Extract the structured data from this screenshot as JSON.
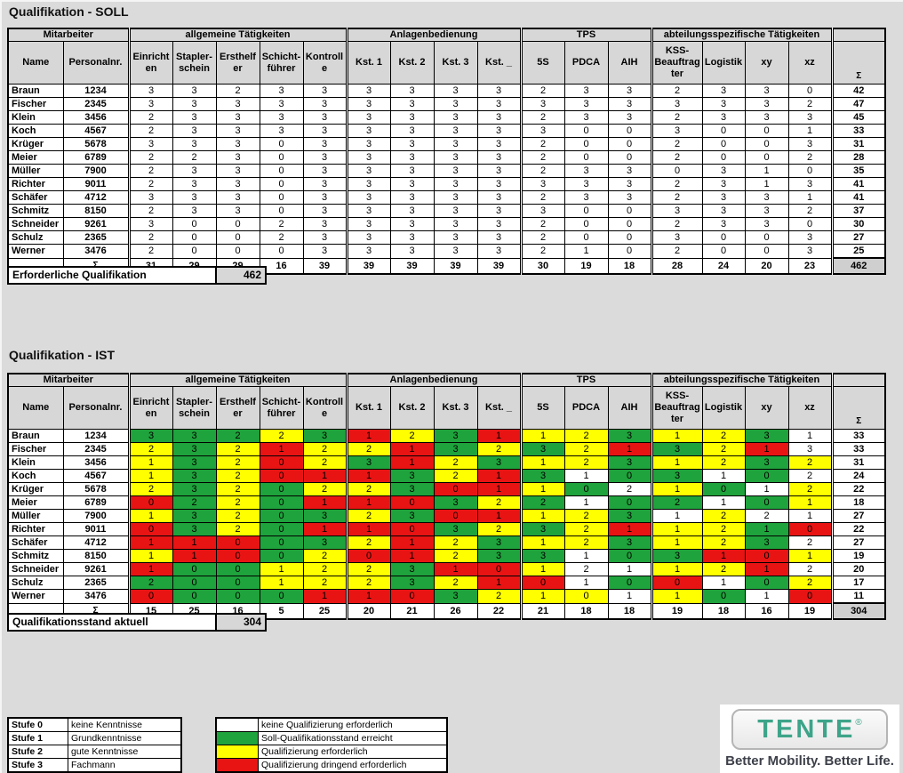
{
  "table_header": {
    "groups": [
      {
        "label": "Mitarbeiter",
        "span": 2
      },
      {
        "label": "allgemeine Tätigkeiten",
        "span": 5
      },
      {
        "label": "Anlagenbedienung",
        "span": 4
      },
      {
        "label": "TPS",
        "span": 3
      },
      {
        "label": "abteilungsspezifische Tätigkeiten",
        "span": 4
      },
      {
        "label": "",
        "span": 1
      }
    ],
    "columns": [
      "Name",
      "Personalnr.",
      "Einricht\nen",
      "Stapler-\nschein",
      "Ersthelf\ner",
      "Schicht-\nführer",
      "Kontroll\ne",
      "Kst. 1",
      "Kst. 2",
      "Kst. 3",
      "Kst. _",
      "5S",
      "PDCA",
      "AIH",
      "KSS-\nBeauftrag\nter",
      "Logistik",
      "xy",
      "xz",
      "Σ"
    ],
    "sum_symbol": "Σ"
  },
  "soll": {
    "title": "Qualifikation - SOLL",
    "summary_label": "Erforderliche Qualifikation",
    "summary_value": "462",
    "rows": [
      {
        "name": "Braun",
        "pnr": "1234",
        "values": [
          3,
          3,
          2,
          3,
          3,
          3,
          3,
          3,
          3,
          2,
          3,
          3,
          2,
          3,
          3,
          0
        ],
        "sum": 42
      },
      {
        "name": "Fischer",
        "pnr": "2345",
        "values": [
          3,
          3,
          3,
          3,
          3,
          3,
          3,
          3,
          3,
          3,
          3,
          3,
          3,
          3,
          3,
          2
        ],
        "sum": 47
      },
      {
        "name": "Klein",
        "pnr": "3456",
        "values": [
          2,
          3,
          3,
          3,
          3,
          3,
          3,
          3,
          3,
          2,
          3,
          3,
          2,
          3,
          3,
          3
        ],
        "sum": 45
      },
      {
        "name": "Koch",
        "pnr": "4567",
        "values": [
          2,
          3,
          3,
          3,
          3,
          3,
          3,
          3,
          3,
          3,
          0,
          0,
          3,
          0,
          0,
          1
        ],
        "sum": 33
      },
      {
        "name": "Krüger",
        "pnr": "5678",
        "values": [
          3,
          3,
          3,
          0,
          3,
          3,
          3,
          3,
          3,
          2,
          0,
          0,
          2,
          0,
          0,
          3
        ],
        "sum": 31
      },
      {
        "name": "Meier",
        "pnr": "6789",
        "values": [
          2,
          2,
          3,
          0,
          3,
          3,
          3,
          3,
          3,
          2,
          0,
          0,
          2,
          0,
          0,
          2
        ],
        "sum": 28
      },
      {
        "name": "Müller",
        "pnr": "7900",
        "values": [
          2,
          3,
          3,
          0,
          3,
          3,
          3,
          3,
          3,
          2,
          3,
          3,
          0,
          3,
          1,
          0
        ],
        "sum": 35
      },
      {
        "name": "Richter",
        "pnr": "9011",
        "values": [
          2,
          3,
          3,
          0,
          3,
          3,
          3,
          3,
          3,
          3,
          3,
          3,
          2,
          3,
          1,
          3
        ],
        "sum": 41
      },
      {
        "name": "Schäfer",
        "pnr": "4712",
        "values": [
          3,
          3,
          3,
          0,
          3,
          3,
          3,
          3,
          3,
          2,
          3,
          3,
          2,
          3,
          3,
          1
        ],
        "sum": 41
      },
      {
        "name": "Schmitz",
        "pnr": "8150",
        "values": [
          2,
          3,
          3,
          0,
          3,
          3,
          3,
          3,
          3,
          3,
          0,
          0,
          3,
          3,
          3,
          2
        ],
        "sum": 37
      },
      {
        "name": "Schneider",
        "pnr": "9261",
        "values": [
          3,
          0,
          0,
          2,
          3,
          3,
          3,
          3,
          3,
          2,
          0,
          0,
          2,
          3,
          3,
          0
        ],
        "sum": 30
      },
      {
        "name": "Schulz",
        "pnr": "2365",
        "values": [
          2,
          0,
          0,
          2,
          3,
          3,
          3,
          3,
          3,
          2,
          0,
          0,
          3,
          0,
          0,
          3
        ],
        "sum": 27
      },
      {
        "name": "Werner",
        "pnr": "3476",
        "values": [
          2,
          0,
          0,
          0,
          3,
          3,
          3,
          3,
          3,
          2,
          1,
          0,
          2,
          0,
          0,
          3
        ],
        "sum": 25
      }
    ],
    "col_sums": [
      31,
      29,
      29,
      16,
      39,
      39,
      39,
      39,
      39,
      30,
      19,
      18,
      28,
      24,
      20,
      23
    ],
    "total": 462
  },
  "ist": {
    "title": "Qualifikation - IST",
    "summary_label": "Qualifikationsstand aktuell",
    "summary_value": "304",
    "rows": [
      {
        "name": "Braun",
        "pnr": "1234",
        "values": [
          3,
          3,
          2,
          2,
          3,
          1,
          2,
          3,
          1,
          1,
          2,
          3,
          1,
          2,
          3,
          1
        ],
        "sum": 33
      },
      {
        "name": "Fischer",
        "pnr": "2345",
        "values": [
          2,
          3,
          2,
          1,
          2,
          2,
          1,
          3,
          2,
          3,
          2,
          1,
          3,
          2,
          1,
          3
        ],
        "sum": 33
      },
      {
        "name": "Klein",
        "pnr": "3456",
        "values": [
          1,
          3,
          2,
          0,
          2,
          3,
          1,
          2,
          3,
          1,
          2,
          3,
          1,
          2,
          3,
          2
        ],
        "sum": 31
      },
      {
        "name": "Koch",
        "pnr": "4567",
        "values": [
          1,
          3,
          2,
          0,
          1,
          1,
          3,
          2,
          1,
          3,
          1,
          0,
          3,
          1,
          0,
          2
        ],
        "sum": 24
      },
      {
        "name": "Krüger",
        "pnr": "5678",
        "values": [
          2,
          3,
          2,
          0,
          2,
          2,
          3,
          0,
          1,
          1,
          0,
          2,
          1,
          0,
          1,
          2
        ],
        "sum": 22
      },
      {
        "name": "Meier",
        "pnr": "6789",
        "values": [
          0,
          2,
          2,
          0,
          1,
          1,
          0,
          3,
          2,
          2,
          1,
          0,
          2,
          1,
          0,
          1
        ],
        "sum": 18
      },
      {
        "name": "Müller",
        "pnr": "7900",
        "values": [
          1,
          3,
          2,
          0,
          3,
          2,
          3,
          0,
          1,
          1,
          2,
          3,
          1,
          2,
          2,
          1
        ],
        "sum": 27
      },
      {
        "name": "Richter",
        "pnr": "9011",
        "values": [
          0,
          3,
          2,
          0,
          1,
          1,
          0,
          3,
          2,
          3,
          2,
          1,
          1,
          2,
          1,
          0
        ],
        "sum": 22
      },
      {
        "name": "Schäfer",
        "pnr": "4712",
        "values": [
          1,
          1,
          0,
          0,
          3,
          2,
          1,
          2,
          3,
          1,
          2,
          3,
          1,
          2,
          3,
          2
        ],
        "sum": 27
      },
      {
        "name": "Schmitz",
        "pnr": "8150",
        "values": [
          1,
          1,
          0,
          0,
          2,
          0,
          1,
          2,
          3,
          3,
          1,
          0,
          3,
          1,
          0,
          1
        ],
        "sum": 19
      },
      {
        "name": "Schneider",
        "pnr": "9261",
        "values": [
          1,
          0,
          0,
          1,
          2,
          2,
          3,
          1,
          0,
          1,
          2,
          1,
          1,
          2,
          1,
          2
        ],
        "sum": 20
      },
      {
        "name": "Schulz",
        "pnr": "2365",
        "values": [
          2,
          0,
          0,
          1,
          2,
          2,
          3,
          2,
          1,
          0,
          1,
          0,
          0,
          1,
          0,
          2
        ],
        "sum": 17
      },
      {
        "name": "Werner",
        "pnr": "3476",
        "values": [
          0,
          0,
          0,
          0,
          1,
          1,
          0,
          3,
          2,
          1,
          0,
          1,
          1,
          0,
          1,
          0
        ],
        "sum": 11
      }
    ],
    "col_sums": [
      15,
      25,
      16,
      5,
      25,
      20,
      21,
      26,
      22,
      21,
      18,
      18,
      19,
      18,
      16,
      19
    ],
    "total": 304
  },
  "legend_levels": [
    {
      "level": "Stufe 0",
      "desc": "keine Kenntnisse"
    },
    {
      "level": "Stufe 1",
      "desc": "Grundkenntnisse"
    },
    {
      "level": "Stufe 2",
      "desc": "gute Kenntnisse"
    },
    {
      "level": "Stufe 3",
      "desc": "Fachmann"
    }
  ],
  "legend_colors": [
    {
      "color": "white",
      "hex": "#ffffff",
      "label": "keine Qualifizierung erforderlich"
    },
    {
      "color": "green",
      "hex": "#1fa33c",
      "label": "Soll-Qualifikationsstand erreicht"
    },
    {
      "color": "yellow",
      "hex": "#ffff00",
      "label": "Qualifizierung erforderlich"
    },
    {
      "color": "red",
      "hex": "#e81414",
      "label": "Qualifizierung dringend erforderlich"
    }
  ],
  "logo": {
    "brand": "TENTE",
    "reg": "®",
    "tagline": "Better Mobility. Better Life.",
    "brand_color": "#3da489"
  }
}
